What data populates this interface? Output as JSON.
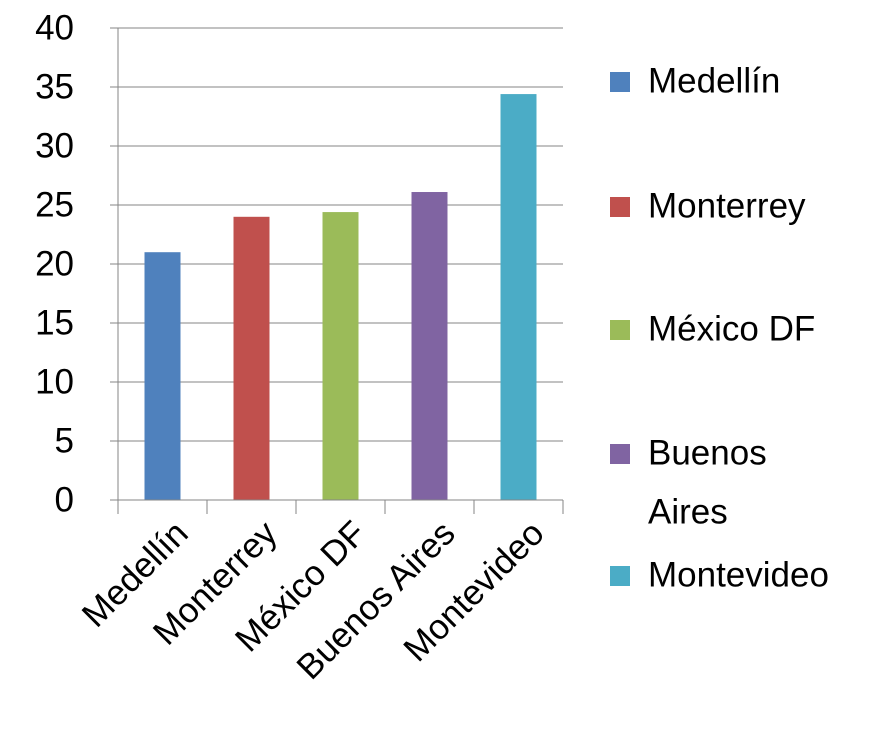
{
  "chart_data": {
    "type": "bar",
    "categories": [
      "Medellín",
      "Monterrey",
      "México DF",
      "Buenos Aires",
      "Montevideo"
    ],
    "values": [
      21,
      24,
      24.4,
      26.1,
      34.4
    ],
    "colors": [
      "#4F81BD",
      "#C0504D",
      "#9BBB59",
      "#8064A2",
      "#4BACC6"
    ],
    "ylim": [
      0,
      40
    ],
    "yticks": [
      "0",
      "5",
      "10",
      "15",
      "20",
      "25",
      "30",
      "35",
      "40"
    ],
    "grid": true,
    "legend": {
      "position": "right",
      "entries": [
        {
          "lines": [
            "Medellín"
          ],
          "color": "#4F81BD"
        },
        {
          "lines": [
            "Monterrey"
          ],
          "color": "#C0504D"
        },
        {
          "lines": [
            "México DF"
          ],
          "color": "#9BBB59"
        },
        {
          "lines": [
            "Buenos",
            "Aires"
          ],
          "color": "#8064A2"
        },
        {
          "lines": [
            "Montevideo"
          ],
          "color": "#4BACC6"
        }
      ]
    }
  }
}
